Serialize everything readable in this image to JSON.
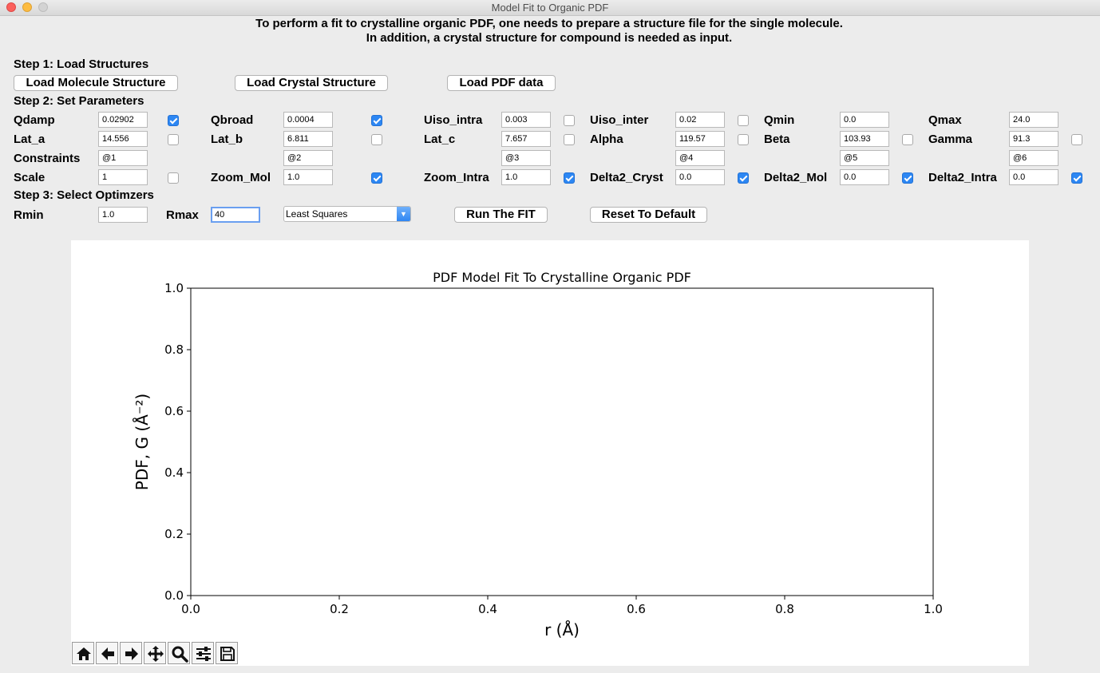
{
  "window": {
    "title": "Model Fit to Organic PDF"
  },
  "intro": {
    "line1": "To perform a fit to crystalline organic PDF, one needs to prepare a structure file for the single molecule.",
    "line2": "In addition, a crystal structure for compound is needed as input."
  },
  "step1": {
    "label": "Step 1: Load Structures",
    "load_molecule": "Load Molecule Structure",
    "load_crystal": "Load Crystal Structure",
    "load_pdf": "Load PDF data"
  },
  "step2": {
    "label": "Step 2: Set Parameters",
    "params": {
      "qdamp": {
        "label": "Qdamp",
        "value": "0.02902",
        "checked": true
      },
      "qbroad": {
        "label": "Qbroad",
        "value": "0.0004",
        "checked": true
      },
      "uiso_intra": {
        "label": "Uiso_intra",
        "value": "0.003",
        "checked": false
      },
      "uiso_inter": {
        "label": "Uiso_inter",
        "value": "0.02",
        "checked": false
      },
      "qmin": {
        "label": "Qmin",
        "value": "0.0"
      },
      "qmax": {
        "label": "Qmax",
        "value": "24.0"
      },
      "lat_a": {
        "label": "Lat_a",
        "value": "14.556",
        "checked": false
      },
      "lat_b": {
        "label": "Lat_b",
        "value": "6.811",
        "checked": false
      },
      "lat_c": {
        "label": "Lat_c",
        "value": "7.657",
        "checked": false
      },
      "alpha": {
        "label": "Alpha",
        "value": "119.57",
        "checked": false
      },
      "beta": {
        "label": "Beta",
        "value": "103.93",
        "checked": false
      },
      "gamma": {
        "label": "Gamma",
        "value": "91.3",
        "checked": false
      },
      "constraints": {
        "label": "Constraints",
        "values": [
          "@1",
          "@2",
          "@3",
          "@4",
          "@5",
          "@6"
        ]
      },
      "scale": {
        "label": "Scale",
        "value": "1",
        "checked": false
      },
      "zoom_mol": {
        "label": "Zoom_Mol",
        "value": "1.0",
        "checked": true
      },
      "zoom_intra": {
        "label": "Zoom_Intra",
        "value": "1.0",
        "checked": true
      },
      "delta2_cryst": {
        "label": "Delta2_Cryst",
        "value": "0.0",
        "checked": true
      },
      "delta2_mol": {
        "label": "Delta2_Mol",
        "value": "0.0",
        "checked": true
      },
      "delta2_intra": {
        "label": "Delta2_Intra",
        "value": "0.0",
        "checked": true
      }
    }
  },
  "step3": {
    "label": "Step 3: Select Optimzers",
    "rmin": {
      "label": "Rmin",
      "value": "1.0"
    },
    "rmax": {
      "label": "Rmax",
      "value": "40"
    },
    "optimizer": "Least Squares",
    "run": "Run The FIT",
    "reset": "Reset To Default"
  },
  "chart_data": {
    "type": "line",
    "title": "PDF Model Fit To Crystalline Organic PDF",
    "xlabel": "r (Å)",
    "ylabel": "PDF, G (Å⁻²)",
    "xlim": [
      0,
      1
    ],
    "ylim": [
      0,
      1
    ],
    "xticks": [
      "0.0",
      "0.2",
      "0.4",
      "0.6",
      "0.8",
      "1.0"
    ],
    "yticks": [
      "0.0",
      "0.2",
      "0.4",
      "0.6",
      "0.8",
      "1.0"
    ],
    "series": [],
    "grid": false
  },
  "toolbar": {
    "icons": [
      "home-icon",
      "back-arrow-icon",
      "forward-arrow-icon",
      "pan-icon",
      "zoom-icon",
      "configure-subplots-icon",
      "save-icon"
    ]
  }
}
